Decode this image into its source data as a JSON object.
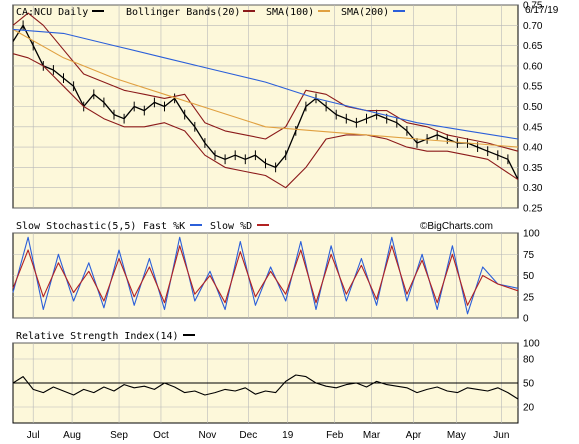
{
  "colors": {
    "background": "#ffffff",
    "panel_bg": "#fdf8da",
    "price": "#000000",
    "bollinger": "#8b1a1a",
    "sma100": "#e0a040",
    "sma200": "#2b5fd9",
    "fast_k": "#2b5fd9",
    "slow_d": "#b22222",
    "rsi": "#000000",
    "grid": "#b8b8b8"
  },
  "chart_data": [
    {
      "type": "line",
      "panel": "price",
      "title": "CA:NCU Daily",
      "date_label": "6/17/19",
      "watermark": "©BigCharts.com",
      "legend": [
        "Bollinger Bands(20)",
        "SMA(100)",
        "SMA(200)"
      ],
      "ylim": [
        0.25,
        0.75
      ],
      "yticks": [
        0.25,
        0.3,
        0.35,
        0.4,
        0.45,
        0.5,
        0.55,
        0.6,
        0.65,
        0.7,
        0.75
      ],
      "ytick_labels": [
        "0.25",
        "0.30",
        "0.35",
        "0.40",
        "0.45",
        "0.50",
        "0.55",
        "0.60",
        "0.65",
        "0.70",
        "0.75"
      ],
      "months": [
        {
          "label": "Jul",
          "t": 0.04
        },
        {
          "label": "Aug",
          "t": 0.117
        },
        {
          "label": "Sep",
          "t": 0.21
        },
        {
          "label": "Oct",
          "t": 0.293
        },
        {
          "label": "Nov",
          "t": 0.385
        },
        {
          "label": "Dec",
          "t": 0.466
        },
        {
          "label": "19",
          "t": 0.544
        },
        {
          "label": "Feb",
          "t": 0.637
        },
        {
          "label": "Mar",
          "t": 0.71
        },
        {
          "label": "Apr",
          "t": 0.793
        },
        {
          "label": "May",
          "t": 0.878
        },
        {
          "label": "Jun",
          "t": 0.967
        }
      ],
      "series": [
        {
          "key": "close",
          "t": [
            0,
            0.02,
            0.04,
            0.06,
            0.08,
            0.1,
            0.12,
            0.14,
            0.16,
            0.18,
            0.2,
            0.22,
            0.24,
            0.26,
            0.28,
            0.3,
            0.32,
            0.34,
            0.36,
            0.38,
            0.4,
            0.42,
            0.44,
            0.46,
            0.48,
            0.5,
            0.52,
            0.54,
            0.56,
            0.58,
            0.6,
            0.62,
            0.64,
            0.66,
            0.68,
            0.7,
            0.72,
            0.74,
            0.76,
            0.78,
            0.8,
            0.82,
            0.84,
            0.86,
            0.88,
            0.9,
            0.92,
            0.94,
            0.96,
            0.98,
            1.0
          ],
          "values": [
            0.66,
            0.7,
            0.65,
            0.6,
            0.59,
            0.57,
            0.55,
            0.5,
            0.53,
            0.51,
            0.48,
            0.47,
            0.5,
            0.49,
            0.51,
            0.5,
            0.52,
            0.48,
            0.45,
            0.41,
            0.38,
            0.37,
            0.38,
            0.37,
            0.38,
            0.36,
            0.35,
            0.38,
            0.44,
            0.5,
            0.52,
            0.5,
            0.48,
            0.47,
            0.46,
            0.47,
            0.48,
            0.47,
            0.46,
            0.44,
            0.41,
            0.42,
            0.43,
            0.42,
            0.41,
            0.41,
            0.4,
            0.39,
            0.38,
            0.37,
            0.32
          ]
        },
        {
          "key": "bb_upper",
          "t": [
            0,
            0.03,
            0.06,
            0.1,
            0.14,
            0.18,
            0.22,
            0.26,
            0.3,
            0.34,
            0.38,
            0.42,
            0.46,
            0.5,
            0.54,
            0.58,
            0.62,
            0.66,
            0.7,
            0.74,
            0.78,
            0.82,
            0.86,
            0.9,
            0.94,
            1.0
          ],
          "values": [
            0.7,
            0.73,
            0.7,
            0.64,
            0.58,
            0.56,
            0.54,
            0.53,
            0.52,
            0.53,
            0.46,
            0.44,
            0.43,
            0.42,
            0.45,
            0.54,
            0.53,
            0.5,
            0.49,
            0.49,
            0.46,
            0.45,
            0.43,
            0.42,
            0.41,
            0.39
          ]
        },
        {
          "key": "bb_lower",
          "t": [
            0,
            0.03,
            0.06,
            0.1,
            0.14,
            0.18,
            0.22,
            0.26,
            0.3,
            0.34,
            0.38,
            0.42,
            0.46,
            0.5,
            0.54,
            0.58,
            0.62,
            0.66,
            0.7,
            0.74,
            0.78,
            0.82,
            0.86,
            0.9,
            0.94,
            1.0
          ],
          "values": [
            0.63,
            0.62,
            0.6,
            0.55,
            0.5,
            0.47,
            0.45,
            0.45,
            0.46,
            0.44,
            0.38,
            0.35,
            0.34,
            0.33,
            0.3,
            0.35,
            0.42,
            0.43,
            0.43,
            0.42,
            0.4,
            0.39,
            0.39,
            0.38,
            0.37,
            0.32
          ]
        },
        {
          "key": "sma100",
          "t": [
            0.0,
            0.1,
            0.2,
            0.3,
            0.4,
            0.5,
            0.6,
            0.7,
            0.8,
            0.9,
            1.0
          ],
          "values": [
            0.69,
            0.62,
            0.57,
            0.53,
            0.49,
            0.45,
            0.44,
            0.43,
            0.42,
            0.41,
            0.4
          ]
        },
        {
          "key": "sma200",
          "t": [
            0.0,
            0.1,
            0.2,
            0.3,
            0.4,
            0.5,
            0.6,
            0.7,
            0.8,
            0.9,
            1.0
          ],
          "values": [
            0.69,
            0.68,
            0.65,
            0.62,
            0.59,
            0.56,
            0.52,
            0.49,
            0.46,
            0.44,
            0.42
          ]
        }
      ]
    },
    {
      "type": "line",
      "panel": "stochastic",
      "title": "Slow Stochastic(5,5)",
      "legend": [
        "Fast %K",
        "Slow %D"
      ],
      "ylim": [
        0,
        100
      ],
      "yticks": [
        0,
        25,
        50,
        75,
        100
      ],
      "ytick_labels": [
        "0",
        "25",
        "50",
        "75",
        "100"
      ],
      "series": [
        {
          "key": "fast_k",
          "t": [
            0,
            0.03,
            0.06,
            0.09,
            0.12,
            0.15,
            0.18,
            0.21,
            0.24,
            0.27,
            0.3,
            0.33,
            0.36,
            0.39,
            0.42,
            0.45,
            0.48,
            0.51,
            0.54,
            0.57,
            0.6,
            0.63,
            0.66,
            0.69,
            0.72,
            0.75,
            0.78,
            0.81,
            0.84,
            0.87,
            0.9,
            0.93,
            0.96,
            1.0
          ],
          "values": [
            30,
            95,
            10,
            75,
            20,
            65,
            12,
            80,
            15,
            70,
            10,
            95,
            20,
            55,
            10,
            90,
            15,
            60,
            20,
            90,
            10,
            85,
            20,
            70,
            15,
            95,
            20,
            75,
            10,
            85,
            5,
            60,
            40,
            35
          ]
        },
        {
          "key": "slow_d",
          "t": [
            0,
            0.03,
            0.06,
            0.09,
            0.12,
            0.15,
            0.18,
            0.21,
            0.24,
            0.27,
            0.3,
            0.33,
            0.36,
            0.39,
            0.42,
            0.45,
            0.48,
            0.51,
            0.54,
            0.57,
            0.6,
            0.63,
            0.66,
            0.69,
            0.72,
            0.75,
            0.78,
            0.81,
            0.84,
            0.87,
            0.9,
            0.93,
            0.96,
            1.0
          ],
          "values": [
            35,
            80,
            25,
            65,
            30,
            55,
            20,
            70,
            25,
            60,
            18,
            85,
            28,
            50,
            18,
            78,
            25,
            55,
            28,
            80,
            18,
            75,
            28,
            62,
            22,
            85,
            28,
            68,
            18,
            75,
            15,
            50,
            40,
            32
          ]
        }
      ]
    },
    {
      "type": "line",
      "panel": "rsi",
      "title": "Relative Strength Index(14)",
      "ylim": [
        0,
        100
      ],
      "yticks": [
        20,
        50,
        80,
        100
      ],
      "ytick_labels": [
        "20",
        "50",
        "80",
        "100"
      ],
      "series": [
        {
          "key": "rsi",
          "t": [
            0,
            0.02,
            0.04,
            0.06,
            0.08,
            0.1,
            0.12,
            0.14,
            0.16,
            0.18,
            0.2,
            0.22,
            0.24,
            0.26,
            0.28,
            0.3,
            0.32,
            0.34,
            0.36,
            0.38,
            0.4,
            0.42,
            0.44,
            0.46,
            0.48,
            0.5,
            0.52,
            0.54,
            0.56,
            0.58,
            0.6,
            0.62,
            0.64,
            0.66,
            0.68,
            0.7,
            0.72,
            0.74,
            0.76,
            0.78,
            0.8,
            0.82,
            0.84,
            0.86,
            0.88,
            0.9,
            0.92,
            0.94,
            0.96,
            0.98,
            1.0
          ],
          "values": [
            50,
            58,
            42,
            38,
            45,
            40,
            35,
            42,
            38,
            45,
            40,
            48,
            44,
            46,
            42,
            50,
            45,
            38,
            40,
            35,
            38,
            42,
            40,
            44,
            36,
            40,
            38,
            52,
            60,
            58,
            50,
            46,
            44,
            48,
            50,
            45,
            52,
            48,
            46,
            44,
            38,
            42,
            45,
            40,
            38,
            44,
            42,
            40,
            44,
            38,
            30
          ]
        }
      ]
    }
  ]
}
